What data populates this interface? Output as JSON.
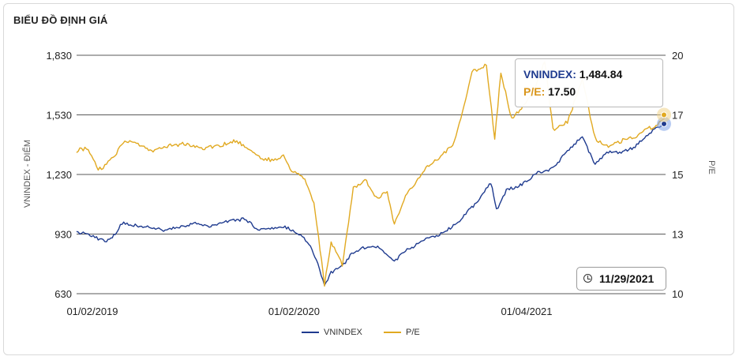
{
  "header": {
    "title": "BIỂU ĐỒ ĐỊNH GIÁ"
  },
  "chart_data": {
    "type": "line",
    "title": "BIỂU ĐỒ ĐỊNH GIÁ",
    "ylabel_left": "VNINDEX - ĐIỂM",
    "ylabel_right": "P/E",
    "y_left_lim": [
      630,
      1830
    ],
    "y_left_ticks": [
      "1,830",
      "1,530",
      "1,230",
      "930",
      "630"
    ],
    "y_right_lim": [
      10,
      20
    ],
    "y_right_ticks": [
      "20",
      "17",
      "15",
      "13",
      "10"
    ],
    "x_ticks": [
      "01/02/2019",
      "01/02/2020",
      "01/04/2021"
    ],
    "x_range": [
      "2019-01-02",
      "2021-11-29"
    ],
    "grid": true,
    "legend_position": "bottom-center",
    "series": [
      {
        "name": "VNINDEX",
        "axis": "left",
        "color": "#1f3b8f",
        "points": [
          [
            "2019-01-02",
            935
          ],
          [
            "2019-01-20",
            935
          ],
          [
            "2019-02-10",
            905
          ],
          [
            "2019-02-25",
            895
          ],
          [
            "2019-03-10",
            920
          ],
          [
            "2019-03-25",
            985
          ],
          [
            "2019-04-15",
            975
          ],
          [
            "2019-05-10",
            965
          ],
          [
            "2019-06-05",
            950
          ],
          [
            "2019-07-01",
            960
          ],
          [
            "2019-08-01",
            985
          ],
          [
            "2019-09-01",
            970
          ],
          [
            "2019-10-01",
            995
          ],
          [
            "2019-11-01",
            1005
          ],
          [
            "2019-11-25",
            955
          ],
          [
            "2019-12-20",
            960
          ],
          [
            "2020-01-10",
            970
          ],
          [
            "2020-02-10",
            930
          ],
          [
            "2020-02-25",
            880
          ],
          [
            "2020-03-12",
            790
          ],
          [
            "2020-03-24",
            665
          ],
          [
            "2020-04-05",
            735
          ],
          [
            "2020-04-25",
            770
          ],
          [
            "2020-05-15",
            840
          ],
          [
            "2020-06-10",
            870
          ],
          [
            "2020-07-01",
            860
          ],
          [
            "2020-07-28",
            795
          ],
          [
            "2020-08-20",
            850
          ],
          [
            "2020-09-20",
            900
          ],
          [
            "2020-10-20",
            930
          ],
          [
            "2020-11-20",
            990
          ],
          [
            "2020-12-20",
            1080
          ],
          [
            "2021-01-18",
            1190
          ],
          [
            "2021-01-28",
            1050
          ],
          [
            "2021-02-15",
            1150
          ],
          [
            "2021-03-15",
            1180
          ],
          [
            "2021-04-10",
            1235
          ],
          [
            "2021-05-10",
            1260
          ],
          [
            "2021-06-05",
            1350
          ],
          [
            "2021-07-02",
            1420
          ],
          [
            "2021-07-25",
            1280
          ],
          [
            "2021-08-15",
            1340
          ],
          [
            "2021-09-10",
            1340
          ],
          [
            "2021-10-05",
            1370
          ],
          [
            "2021-10-25",
            1420
          ],
          [
            "2021-11-12",
            1470
          ],
          [
            "2021-11-29",
            1484.84
          ]
        ]
      },
      {
        "name": "P/E",
        "axis": "right",
        "color": "#e1a921",
        "points": [
          [
            "2019-01-02",
            16.0
          ],
          [
            "2019-01-20",
            16.1
          ],
          [
            "2019-02-10",
            15.2
          ],
          [
            "2019-02-25",
            15.4
          ],
          [
            "2019-03-15",
            15.9
          ],
          [
            "2019-03-30",
            16.4
          ],
          [
            "2019-04-20",
            16.3
          ],
          [
            "2019-05-20",
            16.0
          ],
          [
            "2019-06-20",
            16.2
          ],
          [
            "2019-07-15",
            16.3
          ],
          [
            "2019-08-15",
            16.1
          ],
          [
            "2019-09-15",
            16.2
          ],
          [
            "2019-10-15",
            16.4
          ],
          [
            "2019-11-10",
            16.1
          ],
          [
            "2019-11-30",
            15.7
          ],
          [
            "2019-12-20",
            15.6
          ],
          [
            "2020-01-10",
            15.8
          ],
          [
            "2020-01-25",
            15.1
          ],
          [
            "2020-02-15",
            14.9
          ],
          [
            "2020-03-05",
            13.8
          ],
          [
            "2020-03-24",
            10.4
          ],
          [
            "2020-04-05",
            12.2
          ],
          [
            "2020-04-25",
            11.2
          ],
          [
            "2020-05-15",
            14.4
          ],
          [
            "2020-06-05",
            14.8
          ],
          [
            "2020-06-25",
            14.0
          ],
          [
            "2020-07-15",
            14.3
          ],
          [
            "2020-07-28",
            12.9
          ],
          [
            "2020-08-20",
            14.2
          ],
          [
            "2020-09-20",
            15.2
          ],
          [
            "2020-10-20",
            15.8
          ],
          [
            "2020-11-10",
            16.2
          ],
          [
            "2020-11-25",
            17.3
          ],
          [
            "2020-12-15",
            19.3
          ],
          [
            "2021-01-10",
            19.6
          ],
          [
            "2021-01-25",
            16.5
          ],
          [
            "2021-02-05",
            19.3
          ],
          [
            "2021-02-25",
            17.3
          ],
          [
            "2021-03-20",
            18.0
          ],
          [
            "2021-04-10",
            18.7
          ],
          [
            "2021-04-25",
            19.8
          ],
          [
            "2021-05-10",
            16.9
          ],
          [
            "2021-06-05",
            17.2
          ],
          [
            "2021-07-02",
            19.0
          ],
          [
            "2021-07-25",
            16.5
          ],
          [
            "2021-08-15",
            16.2
          ],
          [
            "2021-09-10",
            16.4
          ],
          [
            "2021-10-05",
            16.6
          ],
          [
            "2021-10-25",
            16.9
          ],
          [
            "2021-11-12",
            17.0
          ],
          [
            "2021-11-29",
            17.5
          ]
        ]
      }
    ],
    "tooltip": {
      "date": "11/29/2021",
      "entries": [
        {
          "label": "VNINDEX:",
          "value": "1,484.84",
          "color": "#1f3b8f"
        },
        {
          "label": "P/E:",
          "value": "17.50",
          "color": "#d9951a"
        }
      ]
    }
  }
}
